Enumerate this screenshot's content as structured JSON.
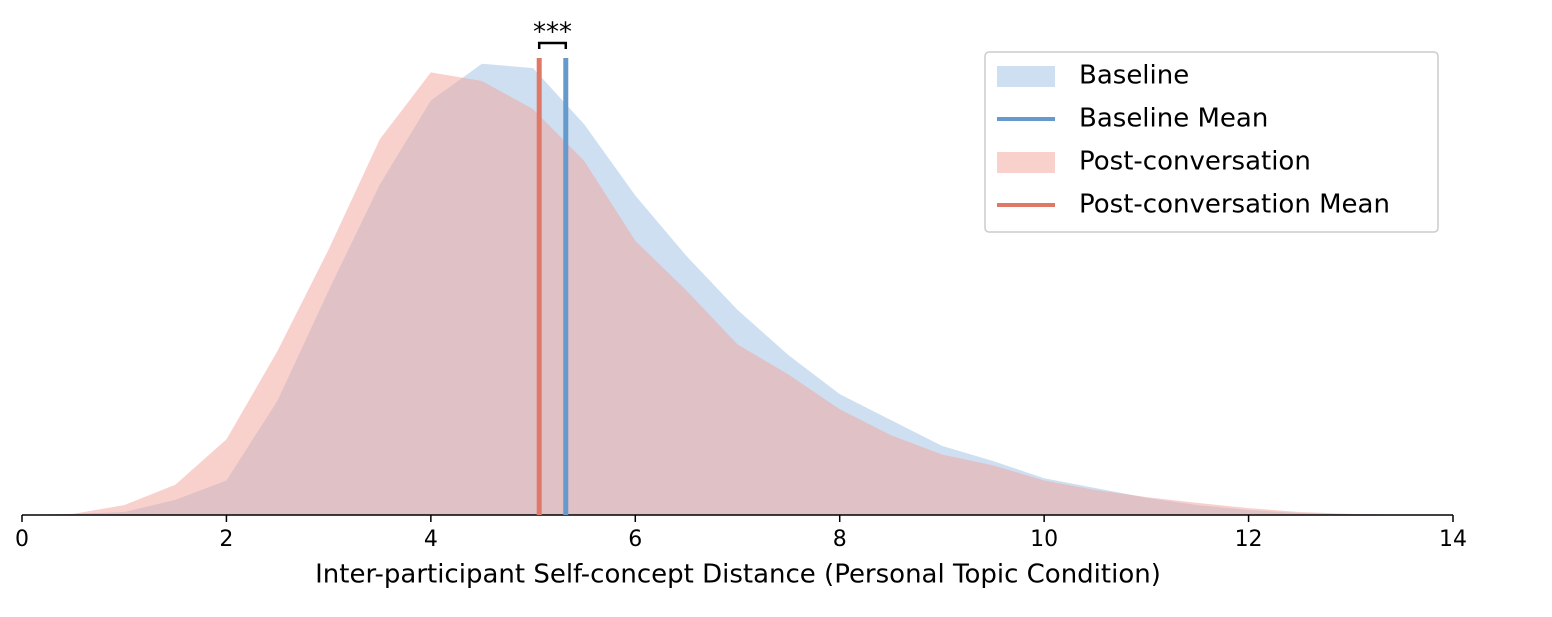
{
  "chart_data": {
    "type": "area",
    "xlabel": "Inter-participant Self-concept Distance (Personal Topic Condition)",
    "x": [
      0,
      0.5,
      1,
      1.5,
      2,
      2.5,
      3,
      3.5,
      4,
      4.5,
      5,
      5.5,
      6,
      6.5,
      7,
      7.5,
      8,
      8.5,
      9,
      9.5,
      10,
      10.5,
      11,
      11.5,
      12,
      12.5,
      13,
      13.5
    ],
    "series": [
      {
        "name": "Baseline",
        "color": "#9dbfe3",
        "values": [
          0,
          0.0005,
          0.0014,
          0.007,
          0.016,
          0.053,
          0.104,
          0.153,
          0.192,
          0.209,
          0.207,
          0.181,
          0.148,
          0.12,
          0.095,
          0.074,
          0.056,
          0.044,
          0.032,
          0.025,
          0.017,
          0.0125,
          0.008,
          0.0046,
          0.0023,
          0.0009,
          0.0003,
          0
        ]
      },
      {
        "name": "Post-conversation",
        "color": "#f1a39b",
        "values": [
          0,
          0.0005,
          0.0046,
          0.014,
          0.035,
          0.076,
          0.123,
          0.174,
          0.205,
          0.201,
          0.188,
          0.164,
          0.127,
          0.104,
          0.079,
          0.065,
          0.049,
          0.037,
          0.028,
          0.023,
          0.016,
          0.0116,
          0.0083,
          0.0056,
          0.0032,
          0.0014,
          0.0005,
          0
        ]
      }
    ],
    "means": [
      {
        "name": "Baseline Mean",
        "color": "#6699cc",
        "value": 5.32
      },
      {
        "name": "Post-conversation Mean",
        "color": "#e07868",
        "value": 5.06
      }
    ],
    "annotation": "***",
    "xlim": [
      0,
      14
    ],
    "xticks": [
      0,
      2,
      4,
      6,
      8,
      10,
      12,
      14
    ],
    "ylim": [
      0,
      0.22
    ],
    "legend": "upper right"
  }
}
